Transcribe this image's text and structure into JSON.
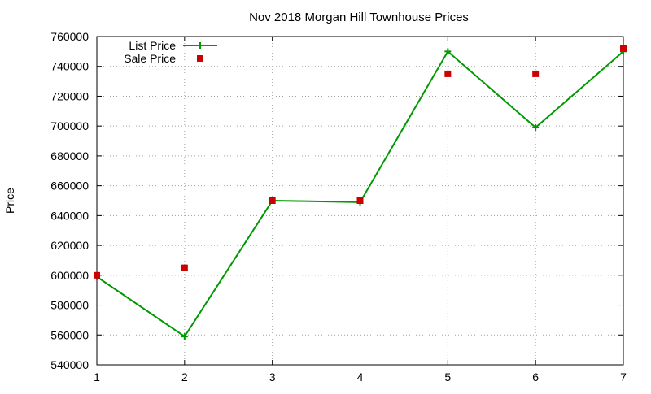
{
  "chart_data": {
    "type": "line",
    "title": "Nov 2018 Morgan Hill Townhouse Prices",
    "xlabel": "",
    "ylabel": "Price",
    "x": [
      1,
      2,
      3,
      4,
      5,
      6,
      7
    ],
    "xlim": [
      1,
      7
    ],
    "ylim": [
      540000,
      760000
    ],
    "xticks": [
      "1",
      "2",
      "3",
      "4",
      "5",
      "6",
      "7"
    ],
    "yticks": [
      "540000",
      "560000",
      "580000",
      "600000",
      "620000",
      "640000",
      "660000",
      "680000",
      "700000",
      "720000",
      "740000",
      "760000"
    ],
    "grid": true,
    "legend_position": "top-left",
    "series": [
      {
        "name": "List Price",
        "style": "line-with-plus-markers",
        "color": "#009900",
        "values": [
          599000,
          559000,
          650000,
          649000,
          750000,
          699000,
          750000
        ]
      },
      {
        "name": "Sale Price",
        "style": "square-points",
        "color": "#cc0000",
        "values": [
          600000,
          605000,
          650000,
          650000,
          735000,
          735000,
          752000
        ]
      }
    ]
  }
}
